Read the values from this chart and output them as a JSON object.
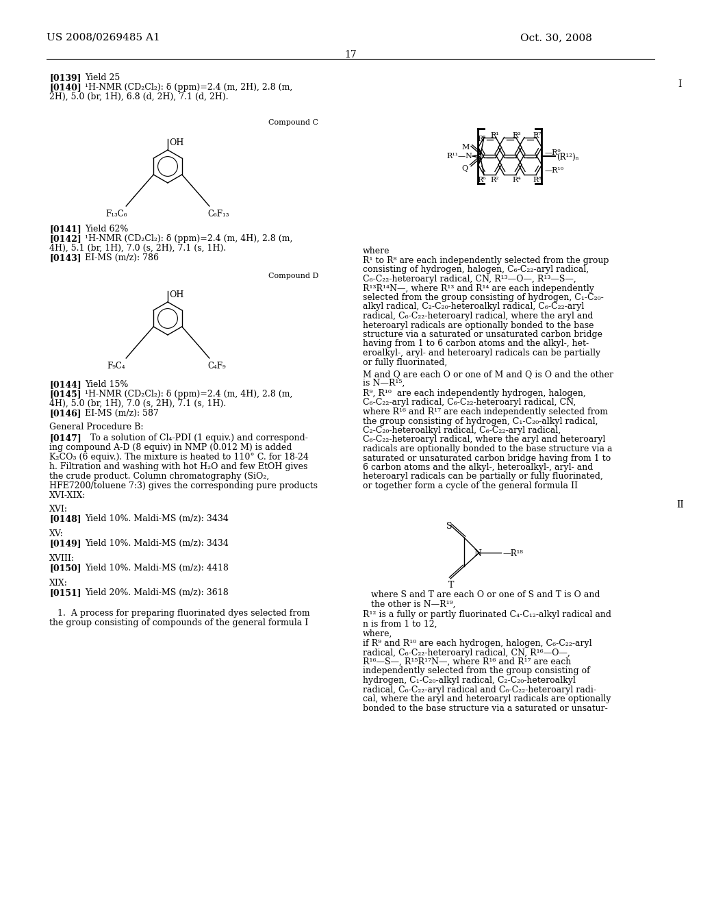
{
  "bg": "#ffffff",
  "header_left": "US 2008/0269485 A1",
  "header_right": "Oct. 30, 2008",
  "page_num": "17"
}
